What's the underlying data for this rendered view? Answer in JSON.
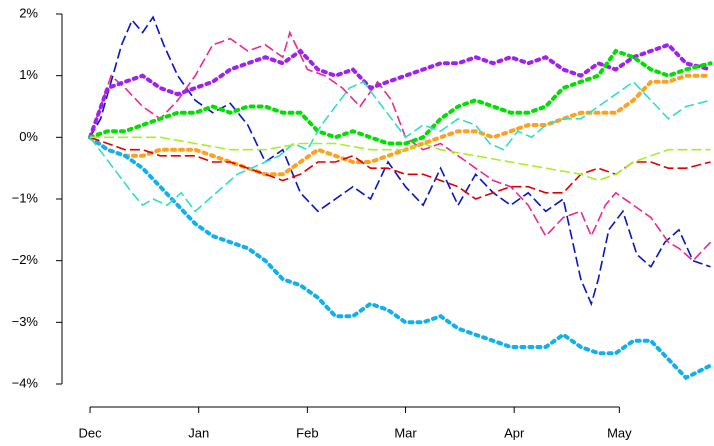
{
  "chart_data": {
    "type": "line",
    "xlim": [
      -8,
      178
    ],
    "ylim": [
      -4,
      2
    ],
    "xticks": [
      {
        "value": 0,
        "label": "Dec"
      },
      {
        "value": 31,
        "label": "Jan"
      },
      {
        "value": 62,
        "label": "Feb"
      },
      {
        "value": 90,
        "label": "Mar"
      },
      {
        "value": 121,
        "label": "Apr"
      },
      {
        "value": 151,
        "label": "May"
      }
    ],
    "yticks": [
      {
        "value": -4,
        "label": "−4%"
      },
      {
        "value": -3,
        "label": "−3%"
      },
      {
        "value": -2,
        "label": "−2%"
      },
      {
        "value": -1,
        "label": "−1%"
      },
      {
        "value": 0,
        "label": "0%"
      },
      {
        "value": 1,
        "label": "1%"
      },
      {
        "value": 2,
        "label": "2%"
      }
    ],
    "series": [
      {
        "color": "#0a14c8",
        "dash": "dashed",
        "x": [
          0,
          3,
          6,
          9,
          12,
          15,
          18,
          21,
          25,
          30,
          35,
          40,
          45,
          50,
          55,
          60,
          65,
          70,
          75,
          80,
          85,
          90,
          95,
          100,
          105,
          110,
          115,
          120,
          125,
          130,
          135,
          140,
          143,
          145,
          148,
          152,
          156,
          160,
          164,
          168,
          172,
          177
        ],
        "values": [
          0,
          0.3,
          0.9,
          1.5,
          1.9,
          1.7,
          1.95,
          1.5,
          1.0,
          0.6,
          0.4,
          0.55,
          0.2,
          -0.4,
          -0.2,
          -0.9,
          -1.2,
          -1.0,
          -0.8,
          -1.0,
          -0.4,
          -0.8,
          -1.1,
          -0.5,
          -1.1,
          -0.6,
          -0.9,
          -1.1,
          -0.9,
          -1.2,
          -1.0,
          -2.3,
          -2.7,
          -2.3,
          -1.5,
          -1.2,
          -1.9,
          -2.1,
          -1.7,
          -1.5,
          -2.0,
          -2.1
        ]
      },
      {
        "color": "#f0288c",
        "dash": "dashed",
        "x": [
          0,
          3,
          6,
          10,
          15,
          20,
          25,
          30,
          35,
          40,
          45,
          50,
          55,
          57,
          62,
          67,
          72,
          77,
          82,
          86,
          90,
          95,
          100,
          105,
          110,
          115,
          120,
          125,
          130,
          135,
          140,
          143,
          147,
          150,
          155,
          160,
          165,
          168,
          172,
          177
        ],
        "values": [
          0,
          0.5,
          1.0,
          0.8,
          0.5,
          0.3,
          0.6,
          1.0,
          1.5,
          1.6,
          1.4,
          1.5,
          1.3,
          1.7,
          1.1,
          1.0,
          0.8,
          0.5,
          0.9,
          0.6,
          0.0,
          -0.2,
          -0.1,
          -0.3,
          -0.5,
          -0.7,
          -0.8,
          -1.1,
          -1.6,
          -1.3,
          -1.2,
          -1.6,
          -1.1,
          -0.9,
          -1.1,
          -1.3,
          -1.7,
          -1.8,
          -2.0,
          -1.7
        ]
      },
      {
        "color": "#a020f0",
        "dash": "dotted",
        "x": [
          0,
          5,
          10,
          15,
          20,
          25,
          30,
          35,
          40,
          45,
          50,
          55,
          60,
          65,
          70,
          75,
          80,
          85,
          90,
          95,
          100,
          105,
          110,
          115,
          120,
          125,
          130,
          135,
          140,
          145,
          150,
          155,
          160,
          165,
          170,
          177
        ],
        "values": [
          0,
          0.8,
          0.9,
          1.0,
          0.8,
          0.7,
          0.8,
          0.9,
          1.1,
          1.2,
          1.3,
          1.2,
          1.4,
          1.1,
          1.0,
          1.1,
          0.8,
          0.9,
          1.0,
          1.1,
          1.2,
          1.2,
          1.3,
          1.2,
          1.3,
          1.2,
          1.3,
          1.1,
          1.0,
          1.2,
          1.1,
          1.3,
          1.4,
          1.5,
          1.2,
          1.1
        ]
      },
      {
        "color": "#00e000",
        "dash": "dotted",
        "x": [
          0,
          5,
          10,
          15,
          20,
          25,
          30,
          35,
          40,
          45,
          50,
          55,
          60,
          65,
          70,
          75,
          80,
          85,
          90,
          95,
          100,
          105,
          110,
          115,
          120,
          125,
          130,
          135,
          140,
          145,
          150,
          155,
          160,
          165,
          170,
          177
        ],
        "values": [
          0,
          0.1,
          0.1,
          0.2,
          0.3,
          0.4,
          0.4,
          0.5,
          0.4,
          0.5,
          0.5,
          0.4,
          0.4,
          0.1,
          0.0,
          0.1,
          0.0,
          -0.1,
          -0.1,
          0.0,
          0.3,
          0.5,
          0.6,
          0.5,
          0.4,
          0.4,
          0.5,
          0.8,
          0.9,
          1.0,
          1.4,
          1.3,
          1.1,
          1.0,
          1.1,
          1.2
        ]
      },
      {
        "color": "#ffa020",
        "dash": "dotted",
        "x": [
          0,
          5,
          10,
          15,
          20,
          25,
          30,
          35,
          40,
          45,
          50,
          55,
          60,
          65,
          70,
          75,
          80,
          85,
          90,
          95,
          100,
          105,
          110,
          115,
          120,
          125,
          130,
          135,
          140,
          145,
          150,
          155,
          160,
          165,
          170,
          177
        ],
        "values": [
          0,
          -0.2,
          -0.3,
          -0.3,
          -0.2,
          -0.2,
          -0.2,
          -0.3,
          -0.4,
          -0.5,
          -0.6,
          -0.6,
          -0.4,
          -0.2,
          -0.3,
          -0.4,
          -0.4,
          -0.3,
          -0.2,
          -0.1,
          0.0,
          0.1,
          0.1,
          0.0,
          0.1,
          0.2,
          0.2,
          0.3,
          0.4,
          0.4,
          0.4,
          0.6,
          0.9,
          0.9,
          1.0,
          1.0
        ]
      },
      {
        "color": "#10b0f0",
        "dash": "dotted",
        "x": [
          0,
          5,
          10,
          15,
          20,
          25,
          30,
          35,
          40,
          45,
          50,
          55,
          60,
          65,
          70,
          75,
          80,
          85,
          90,
          95,
          100,
          105,
          110,
          115,
          120,
          125,
          130,
          135,
          140,
          145,
          150,
          155,
          160,
          165,
          170,
          177
        ],
        "values": [
          0,
          -0.2,
          -0.3,
          -0.5,
          -0.8,
          -1.1,
          -1.4,
          -1.6,
          -1.7,
          -1.8,
          -2.0,
          -2.3,
          -2.4,
          -2.6,
          -2.9,
          -2.9,
          -2.7,
          -2.8,
          -3.0,
          -3.0,
          -2.9,
          -3.1,
          -3.2,
          -3.3,
          -3.4,
          -3.4,
          -3.4,
          -3.2,
          -3.4,
          -3.5,
          -3.5,
          -3.3,
          -3.3,
          -3.6,
          -3.9,
          -3.7
        ]
      },
      {
        "color": "#30e0c0",
        "dash": "dashed",
        "x": [
          0,
          4,
          8,
          12,
          15,
          18,
          22,
          26,
          30,
          34,
          38,
          42,
          46,
          50,
          54,
          58,
          62,
          66,
          70,
          74,
          78,
          82,
          86,
          90,
          95,
          100,
          105,
          110,
          114,
          118,
          122,
          126,
          130,
          135,
          140,
          145,
          150,
          155,
          160,
          165,
          170,
          177
        ],
        "values": [
          0,
          -0.3,
          -0.6,
          -0.9,
          -1.1,
          -1.0,
          -1.1,
          -0.9,
          -1.2,
          -1.0,
          -0.8,
          -0.6,
          -0.5,
          -0.4,
          -0.3,
          -0.1,
          -0.2,
          0.2,
          0.5,
          0.8,
          0.9,
          0.6,
          0.3,
          0.0,
          0.2,
          0.1,
          0.3,
          0.2,
          -0.1,
          -0.2,
          0.1,
          0.0,
          0.2,
          0.3,
          0.3,
          0.5,
          0.7,
          0.9,
          0.6,
          0.3,
          0.5,
          0.6
        ]
      },
      {
        "color": "#e00000",
        "dash": "dashed",
        "x": [
          0,
          5,
          10,
          15,
          20,
          25,
          30,
          35,
          40,
          45,
          50,
          55,
          60,
          65,
          70,
          75,
          80,
          85,
          90,
          95,
          100,
          105,
          110,
          115,
          120,
          125,
          130,
          135,
          140,
          145,
          150,
          155,
          160,
          165,
          170,
          177
        ],
        "values": [
          0,
          -0.1,
          -0.2,
          -0.2,
          -0.3,
          -0.3,
          -0.3,
          -0.4,
          -0.4,
          -0.5,
          -0.6,
          -0.7,
          -0.6,
          -0.4,
          -0.4,
          -0.3,
          -0.5,
          -0.5,
          -0.6,
          -0.6,
          -0.7,
          -0.8,
          -1.0,
          -0.9,
          -0.8,
          -0.8,
          -0.9,
          -0.9,
          -0.6,
          -0.5,
          -0.6,
          -0.4,
          -0.4,
          -0.5,
          -0.5,
          -0.4
        ]
      },
      {
        "color": "#a8f020",
        "dash": "dashed",
        "x": [
          0,
          10,
          20,
          30,
          40,
          50,
          60,
          70,
          80,
          90,
          95,
          100,
          110,
          120,
          130,
          140,
          145,
          150,
          155,
          160,
          165,
          170,
          177
        ],
        "values": [
          0,
          0.0,
          0.0,
          -0.1,
          -0.2,
          -0.2,
          -0.1,
          -0.1,
          -0.2,
          -0.2,
          -0.1,
          -0.2,
          -0.3,
          -0.4,
          -0.5,
          -0.6,
          -0.7,
          -0.6,
          -0.4,
          -0.3,
          -0.2,
          -0.2,
          -0.2
        ]
      }
    ]
  }
}
